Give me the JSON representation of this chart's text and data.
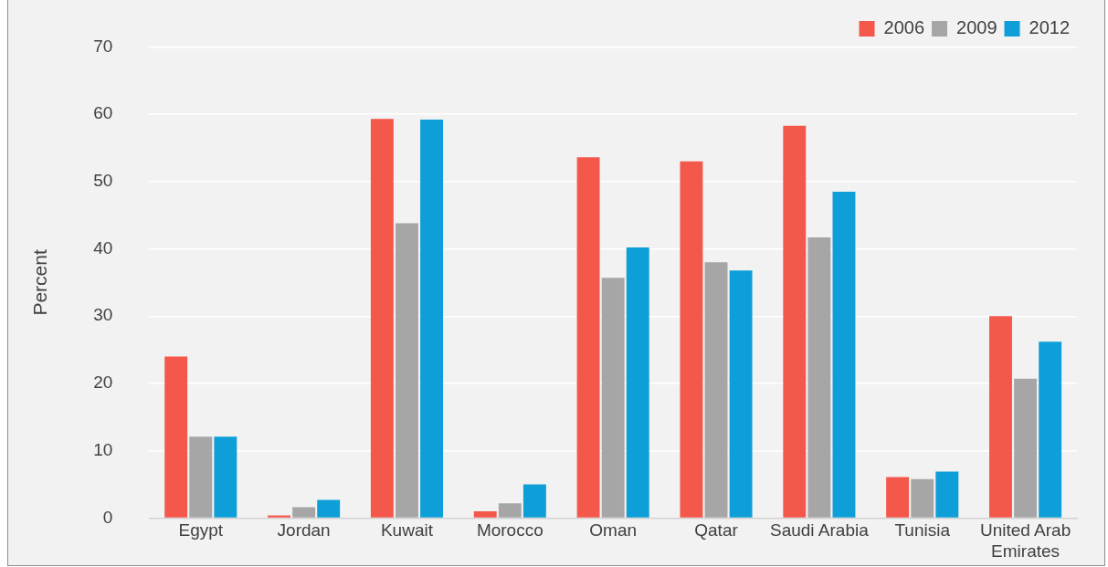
{
  "chart_data": {
    "type": "bar",
    "ylabel": "Percent",
    "categories": [
      "Egypt",
      "Jordan",
      "Kuwait",
      "Morocco",
      "Oman",
      "Qatar",
      "Saudi Arabia",
      "Tunisia",
      "United Arab Emirates"
    ],
    "series": [
      {
        "name": "2006",
        "color": "#f4584a",
        "values": [
          24.0,
          0.4,
          59.3,
          1.0,
          53.6,
          53.0,
          58.3,
          6.1,
          30.0
        ]
      },
      {
        "name": "2009",
        "color": "#a6a6a6",
        "values": [
          12.1,
          1.6,
          43.8,
          2.2,
          35.7,
          38.0,
          41.7,
          5.8,
          20.7
        ]
      },
      {
        "name": "2012",
        "color": "#0e9fd8",
        "values": [
          12.1,
          2.7,
          59.2,
          5.0,
          40.2,
          36.8,
          48.5,
          6.9,
          26.2
        ]
      }
    ],
    "ylim": [
      0,
      70
    ],
    "yticks": [
      0,
      10,
      20,
      30,
      40,
      50,
      60,
      70
    ],
    "grid": "y",
    "legend": "top right"
  }
}
